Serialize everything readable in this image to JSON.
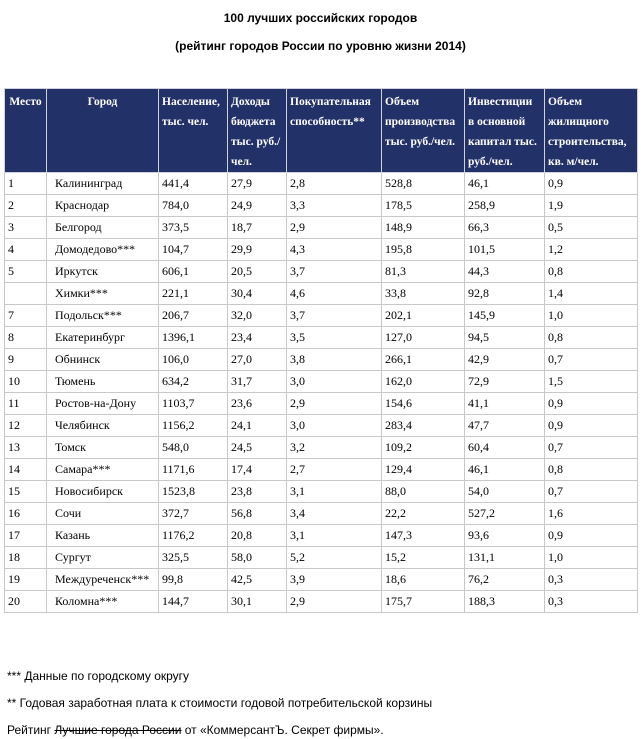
{
  "title": "100 лучших российских городов",
  "subtitle": "(рейтинг городов России по уровню жизни 2014)",
  "columns": [
    "Место",
    "Город",
    "Население, тыс. чел.",
    "Доходы бюджета тыс. руб./ чел.",
    "Покупательная способность**",
    "Объем производства тыс. руб./чел.",
    "Инвестиции в основной капитал тыс. руб./чел.",
    "Объем жилищного строительства, кв. м/чел."
  ],
  "rows": [
    [
      "1",
      "Калининград",
      "441,4",
      "27,9",
      "2,8",
      "528,8",
      "46,1",
      "0,9"
    ],
    [
      "2",
      "Краснодар",
      "784,0",
      "24,9",
      "3,3",
      "178,5",
      "258,9",
      "1,9"
    ],
    [
      "3",
      "Белгород",
      "373,5",
      "18,7",
      "2,9",
      "148,9",
      "66,3",
      "0,5"
    ],
    [
      "4",
      "Домодедово***",
      "104,7",
      "29,9",
      "4,3",
      "195,8",
      "101,5",
      "1,2"
    ],
    [
      "5",
      "Иркутск",
      "606,1",
      "20,5",
      "3,7",
      "81,3",
      "44,3",
      "0,8"
    ],
    [
      "",
      "Химки***",
      "221,1",
      "30,4",
      "4,6",
      "33,8",
      "92,8",
      "1,4"
    ],
    [
      "7",
      "Подольск***",
      "206,7",
      "32,0",
      "3,7",
      "202,1",
      "145,9",
      "1,0"
    ],
    [
      "8",
      "Екатеринбург",
      "1396,1",
      "23,4",
      "3,5",
      "127,0",
      "94,5",
      "0,8"
    ],
    [
      "9",
      "Обнинск",
      "106,0",
      "27,0",
      "3,8",
      "266,1",
      "42,9",
      "0,7"
    ],
    [
      "10",
      "Тюмень",
      "634,2",
      "31,7",
      "3,0",
      "162,0",
      "72,9",
      "1,5"
    ],
    [
      "11",
      "Ростов-на-Дону",
      "1103,7",
      "23,6",
      "2,9",
      "154,6",
      "41,1",
      "0,9"
    ],
    [
      "12",
      "Челябинск",
      "1156,2",
      "24,1",
      "3,0",
      "283,4",
      "47,7",
      "0,9"
    ],
    [
      "13",
      "Томск",
      "548,0",
      "24,5",
      "3,2",
      "109,2",
      "60,4",
      "0,7"
    ],
    [
      "14",
      "Самара***",
      "1171,6",
      "17,4",
      "2,7",
      "129,4",
      "46,1",
      "0,8"
    ],
    [
      "15",
      "Новосибирск",
      "1523,8",
      "23,8",
      "3,1",
      "88,0",
      "54,0",
      "0,7"
    ],
    [
      "16",
      "Сочи",
      "372,7",
      "56,8",
      "3,4",
      "22,2",
      "527,2",
      "1,6"
    ],
    [
      "17",
      "Казань",
      "1176,2",
      "20,8",
      "3,1",
      "147,3",
      "93,6",
      "0,9"
    ],
    [
      "18",
      "Сургут",
      "325,5",
      "58,0",
      "5,2",
      "15,2",
      "131,1",
      "1,0"
    ],
    [
      "19",
      "Междуреченск***",
      "99,8",
      "42,5",
      "3,9",
      "18,6",
      "76,2",
      "0,3"
    ],
    [
      "20",
      "Коломна***",
      "144,7",
      "30,1",
      "2,9",
      "175,7",
      "188,3",
      "0,3"
    ]
  ],
  "footnotes": {
    "triple_star": "*** Данные по городскому округу",
    "double_star": "** Годовая заработная плата к стоимости годовой потребительской корзины",
    "rating_prefix": "Рейтинг ",
    "rating_struck": "Лучшие города России",
    "rating_suffix": " от «КоммерсантЪ. Секрет фирмы»."
  },
  "colors": {
    "header_bg": "#233169",
    "header_text": "#ffffff",
    "border": "#c8c8c8"
  }
}
